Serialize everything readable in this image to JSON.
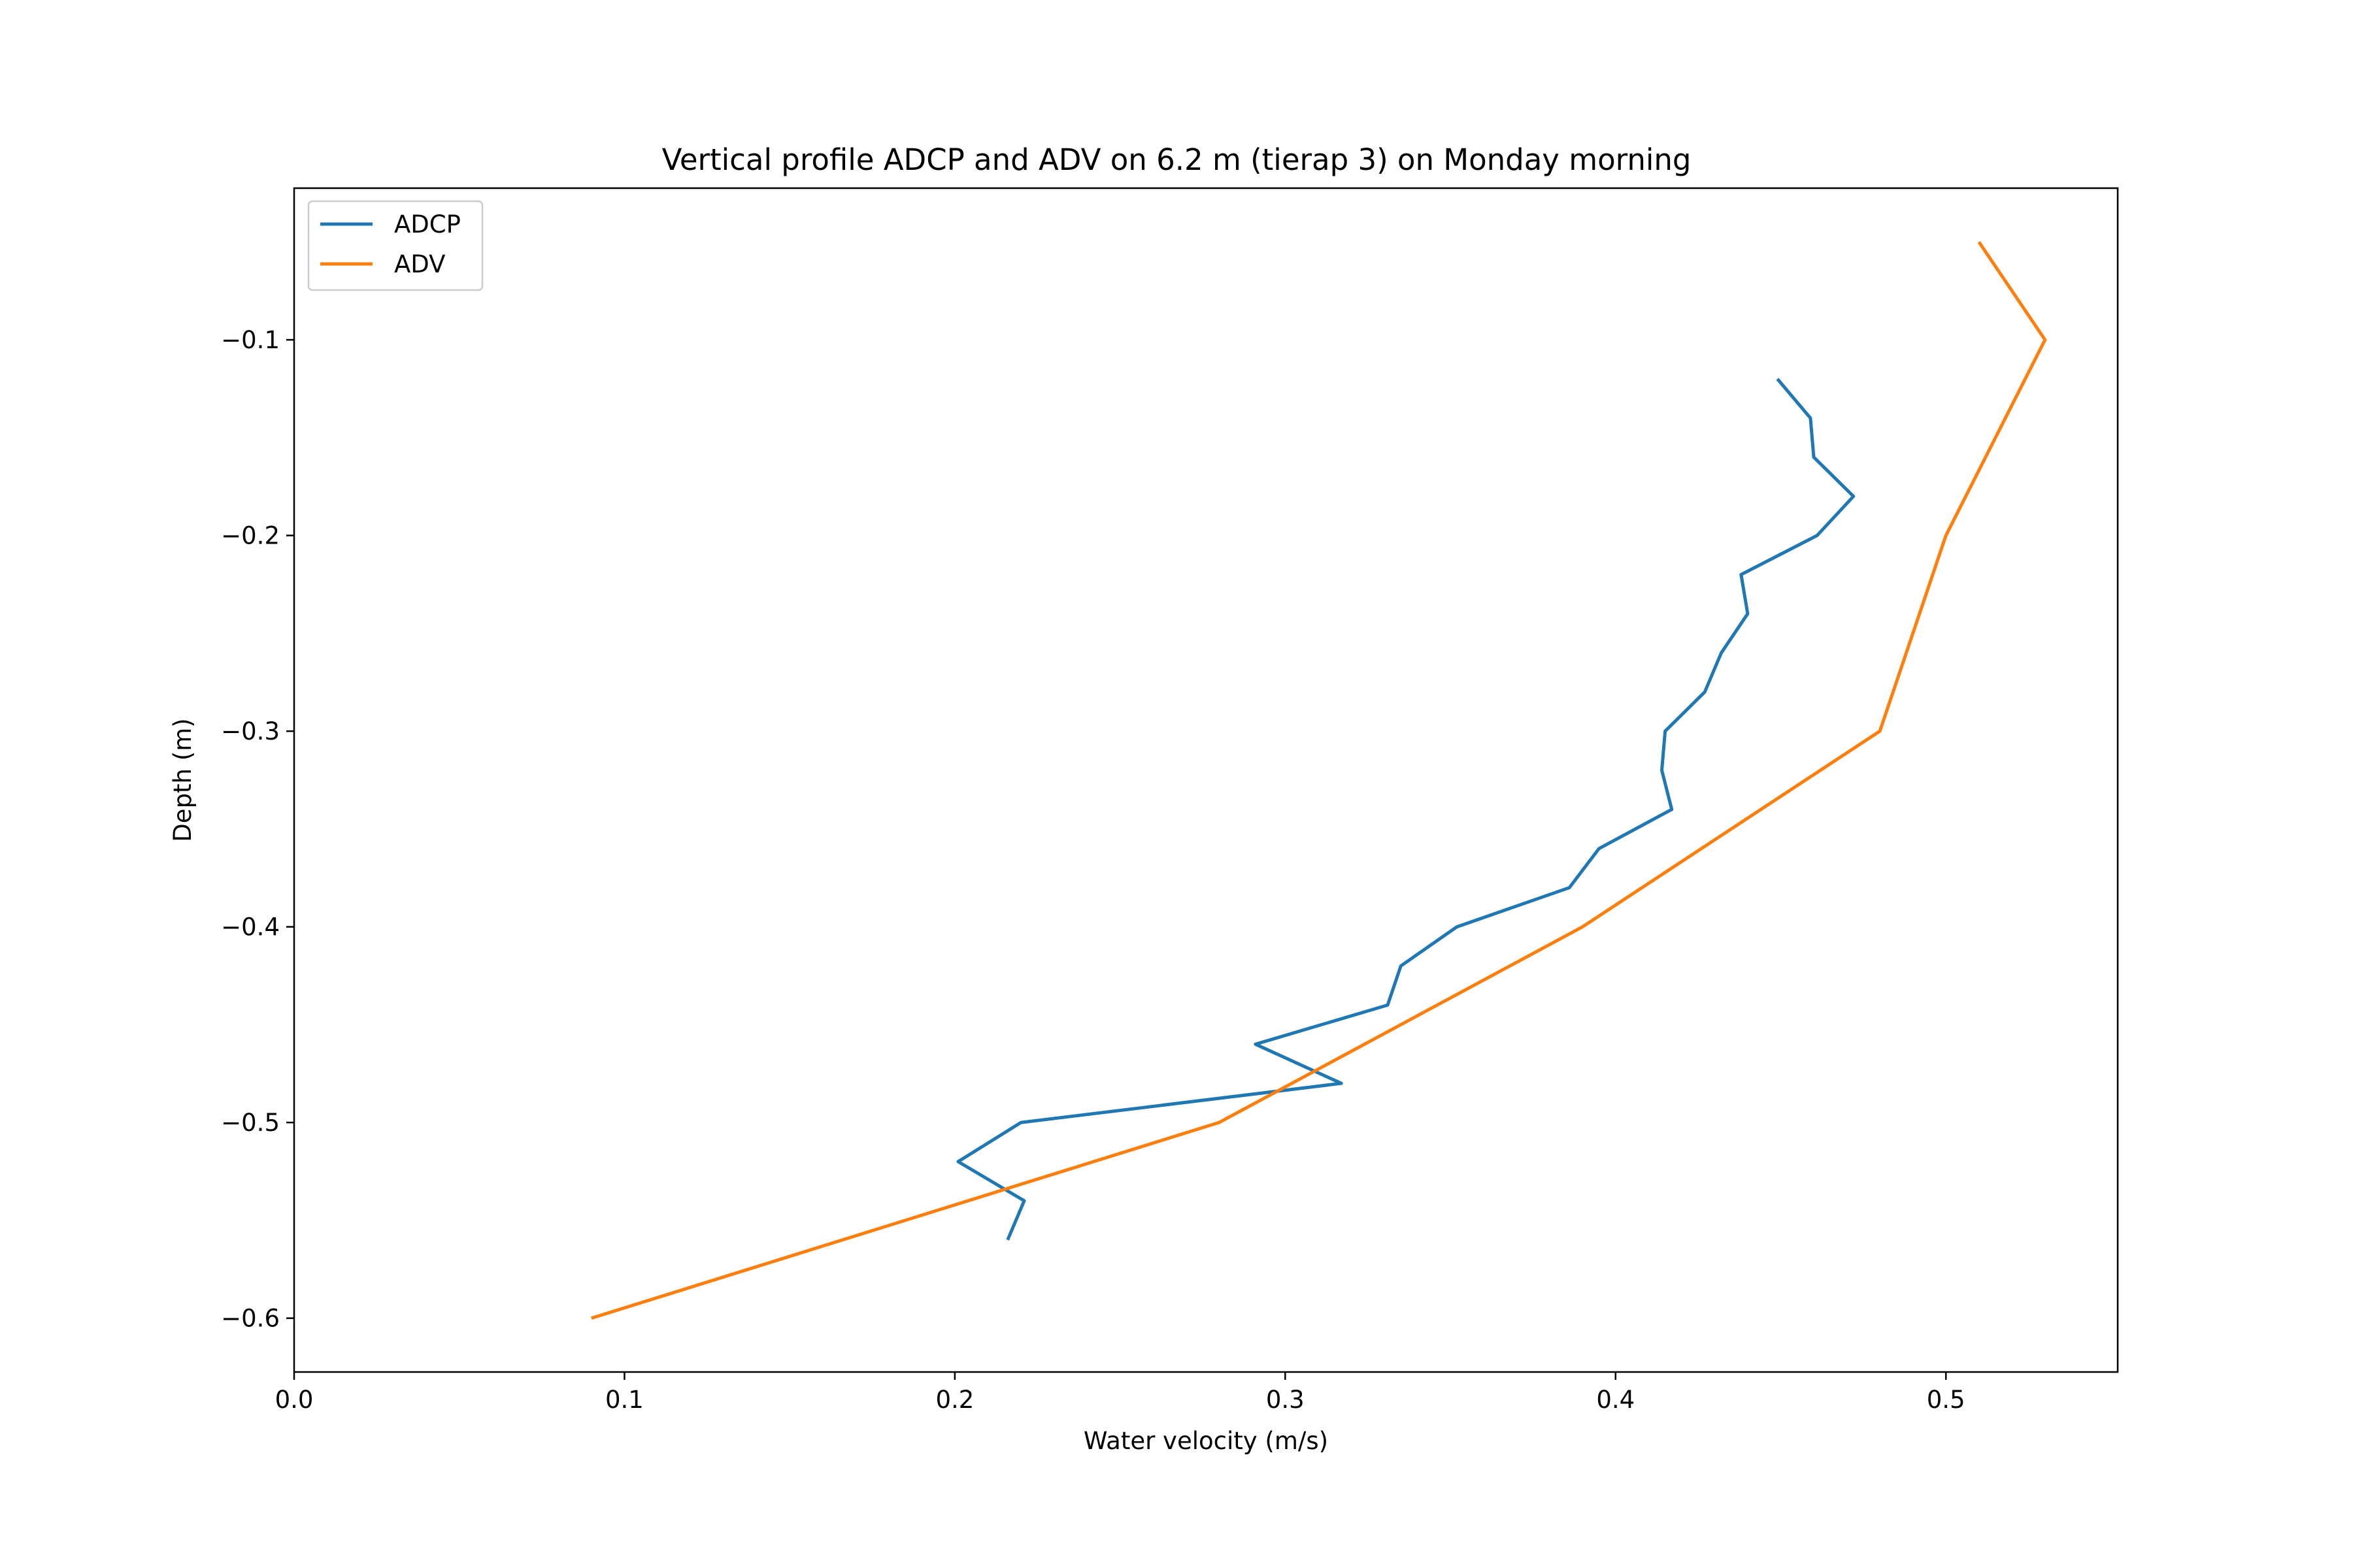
{
  "chart_data": {
    "type": "line",
    "title": "Vertical profile ADCP and ADV on 6.2 m (tierap 3) on Monday morning",
    "xlabel": "Water velocity (m/s)",
    "ylabel": "Depth (m)",
    "xlim": [
      0.0,
      0.552
    ],
    "ylim": [
      -0.6275,
      -0.0225
    ],
    "xticks": [
      0.0,
      0.1,
      0.2,
      0.3,
      0.4,
      0.5
    ],
    "xtick_labels": [
      "0.0",
      "0.1",
      "0.2",
      "0.3",
      "0.4",
      "0.5"
    ],
    "yticks": [
      -0.1,
      -0.2,
      -0.3,
      -0.4,
      -0.5,
      -0.6
    ],
    "ytick_labels": [
      "−0.1",
      "−0.2",
      "−0.3",
      "−0.4",
      "−0.5",
      "−0.6"
    ],
    "grid": false,
    "legend_position": "top-left",
    "series": [
      {
        "name": "ADCP",
        "color": "#1f77b4",
        "x": [
          0.449,
          0.459,
          0.46,
          0.472,
          0.461,
          0.438,
          0.44,
          0.432,
          0.427,
          0.415,
          0.414,
          0.417,
          0.395,
          0.386,
          0.352,
          0.335,
          0.331,
          0.291,
          0.317,
          0.22,
          0.201,
          0.221,
          0.216
        ],
        "y": [
          -0.12,
          -0.14,
          -0.16,
          -0.18,
          -0.2,
          -0.22,
          -0.24,
          -0.26,
          -0.28,
          -0.3,
          -0.32,
          -0.34,
          -0.36,
          -0.38,
          -0.4,
          -0.42,
          -0.44,
          -0.46,
          -0.48,
          -0.5,
          -0.52,
          -0.54,
          -0.56
        ]
      },
      {
        "name": "ADV",
        "color": "#ff7f0e",
        "x": [
          0.51,
          0.53,
          0.5,
          0.48,
          0.39,
          0.28,
          0.09
        ],
        "y": [
          -0.05,
          -0.1,
          -0.2,
          -0.3,
          -0.4,
          -0.5,
          -0.6
        ]
      }
    ]
  }
}
